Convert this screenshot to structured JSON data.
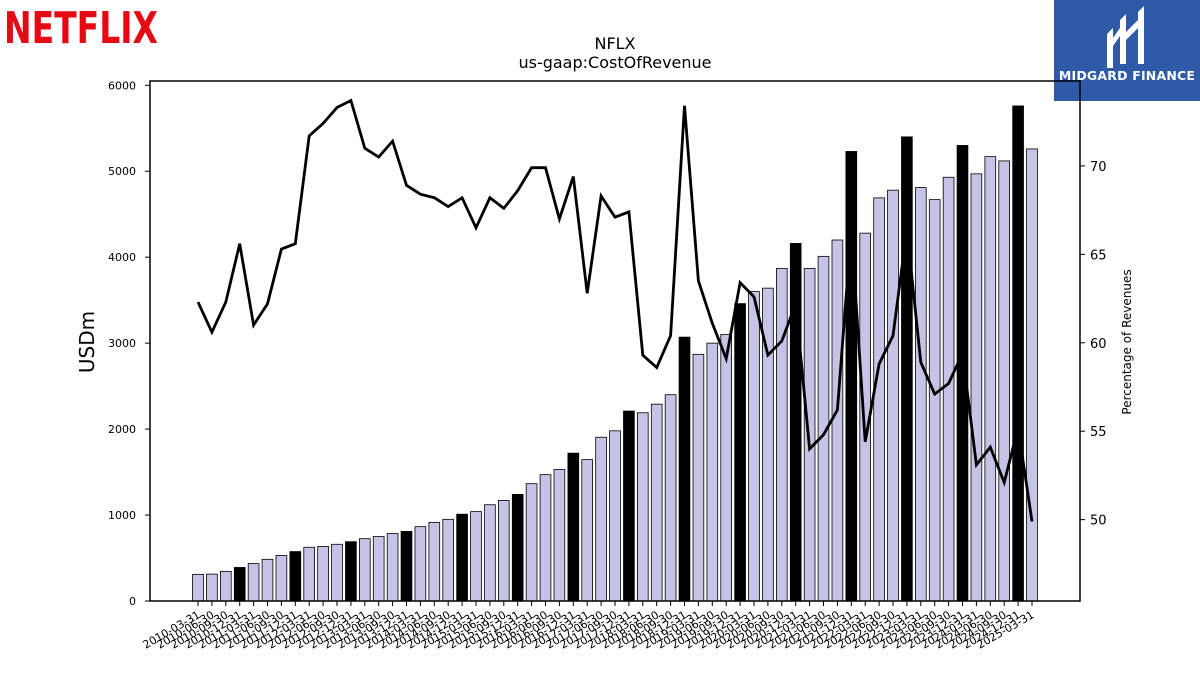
{
  "logos": {
    "netflix": "NETFLIX",
    "midgard": "MIDGARD FINANCE"
  },
  "colors": {
    "netflix_red": "#e50914",
    "midgard_blue": "#2f5aa8",
    "bar_fill": "#c5c3e6",
    "bar_q4": "#000000",
    "line": "#000000"
  },
  "chart_data": {
    "type": "bar",
    "title": "NFLX",
    "subtitle": "us-gaap:CostOfRevenue",
    "ylabel": "USDm",
    "y2label": "Percentage of Revenues",
    "ylim": [
      0,
      6050
    ],
    "y2lim": [
      45.4,
      74.8
    ],
    "yticks": [
      0,
      1000,
      2000,
      3000,
      4000,
      5000,
      6000
    ],
    "y2ticks": [
      50,
      55,
      60,
      65,
      70
    ],
    "categories": [
      "2010-03-31",
      "2010-06-30",
      "2010-09-30",
      "2010-12-31",
      "2011-03-31",
      "2011-06-30",
      "2011-09-30",
      "2011-12-31",
      "2012-03-31",
      "2012-06-30",
      "2012-09-30",
      "2012-12-31",
      "2013-03-31",
      "2013-06-30",
      "2013-09-30",
      "2013-12-31",
      "2014-03-31",
      "2014-06-30",
      "2014-09-30",
      "2014-12-31",
      "2015-03-31",
      "2015-06-30",
      "2015-09-30",
      "2015-12-31",
      "2016-03-31",
      "2016-06-30",
      "2016-09-30",
      "2016-12-31",
      "2017-03-31",
      "2017-06-30",
      "2017-09-30",
      "2017-12-31",
      "2018-03-31",
      "2018-06-30",
      "2018-09-30",
      "2018-12-31",
      "2019-03-31",
      "2019-06-30",
      "2019-09-30",
      "2019-12-31",
      "2020-03-31",
      "2020-06-30",
      "2020-09-30",
      "2020-12-31",
      "2021-03-31",
      "2021-06-30",
      "2021-09-30",
      "2021-12-31",
      "2022-03-31",
      "2022-06-30",
      "2022-09-30",
      "2022-12-31",
      "2023-03-31",
      "2023-06-30",
      "2023-09-30",
      "2023-12-31",
      "2024-03-31",
      "2024-06-30",
      "2024-09-30",
      "2024-12-31",
      "2025-03-31"
    ],
    "series": [
      {
        "values": [
          310,
          313,
          345,
          390,
          435,
          485,
          530,
          575,
          625,
          635,
          660,
          690,
          725,
          750,
          785,
          810,
          865,
          915,
          950,
          1010,
          1040,
          1120,
          1170,
          1240,
          1365,
          1470,
          1530,
          1720,
          1645,
          1905,
          1980,
          2210,
          2190,
          2290,
          2400,
          3070,
          2870,
          3000,
          3100,
          3460,
          3600,
          3640,
          3870,
          4160,
          3870,
          4010,
          4200,
          5230,
          4280,
          4690,
          4780,
          5400,
          4810,
          4670,
          4930,
          5300,
          4970,
          5170,
          5120,
          5760,
          5260
        ]
      },
      {
        "values": [
          62.3,
          60.6,
          62.3,
          65.6,
          61.0,
          62.2,
          65.3,
          65.6,
          71.7,
          72.4,
          73.3,
          73.7,
          71.0,
          70.5,
          71.4,
          68.9,
          68.4,
          68.2,
          67.7,
          68.2,
          66.5,
          68.2,
          67.6,
          68.6,
          69.9,
          69.9,
          67.0,
          69.4,
          62.8,
          68.3,
          67.1,
          67.4,
          59.3,
          58.6,
          60.4,
          73.4,
          63.5,
          61.1,
          59.1,
          63.4,
          62.6,
          59.3,
          60.1,
          62.2,
          54.0,
          54.8,
          56.2,
          66.4,
          54.4,
          58.8,
          60.4,
          66.4,
          58.9,
          57.1,
          57.7,
          59.4,
          53.1,
          54.1,
          52.1,
          55.2,
          49.9
        ]
      }
    ],
    "q4_highlight": true
  }
}
